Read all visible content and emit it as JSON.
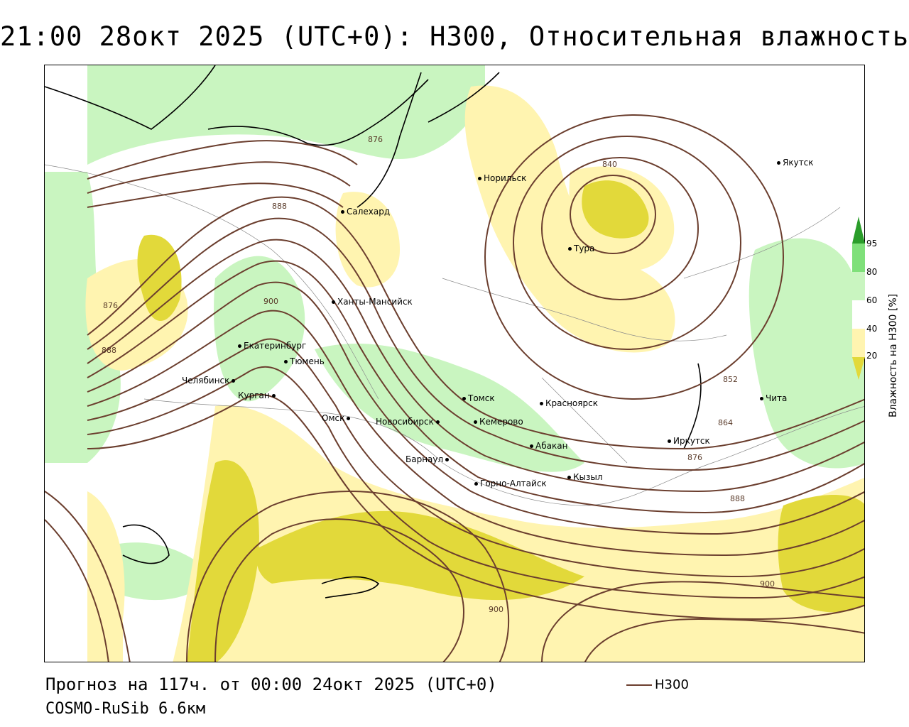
{
  "title": "21:00 28окт 2025 (UTC+0): H300, Относительная влажность",
  "footer": {
    "forecast": "Прогноз на 117ч. от 00:00 24окт 2025 (UTC+0)",
    "model": "COSMO-RuSib 6.6км",
    "contour_key": "H300"
  },
  "colors": {
    "contour": "#6b3e2e",
    "humidity_20_40": "#fff4b0",
    "humidity_dry": "#e2d93a",
    "humidity_60_80": "#c9f5c0",
    "humidity_80_95": "#7fe07a",
    "humidity_95": "#2a9d2a"
  },
  "legend": {
    "title": "Влажность на H300 [%]",
    "ticks": [
      "95",
      "80",
      "60",
      "40",
      "20"
    ]
  },
  "cities": [
    {
      "name": "Якутск"
    },
    {
      "name": "Норильск"
    },
    {
      "name": "Салехард"
    },
    {
      "name": "Тура"
    },
    {
      "name": "Ханты-Мансийск"
    },
    {
      "name": "Екатеринбург"
    },
    {
      "name": "Тюмень"
    },
    {
      "name": "Челябинск"
    },
    {
      "name": "Курган"
    },
    {
      "name": "Омск"
    },
    {
      "name": "Новосибирск"
    },
    {
      "name": "Томск"
    },
    {
      "name": "Кемерово"
    },
    {
      "name": "Красноярск"
    },
    {
      "name": "Барнаул"
    },
    {
      "name": "Абакан"
    },
    {
      "name": "Горно-Алтайск"
    },
    {
      "name": "Кызыл"
    },
    {
      "name": "Иркутск"
    },
    {
      "name": "Чита"
    }
  ],
  "contour_labels": [
    "876",
    "888",
    "840",
    "900",
    "876",
    "888",
    "852",
    "864",
    "876",
    "888",
    "900",
    "900"
  ]
}
